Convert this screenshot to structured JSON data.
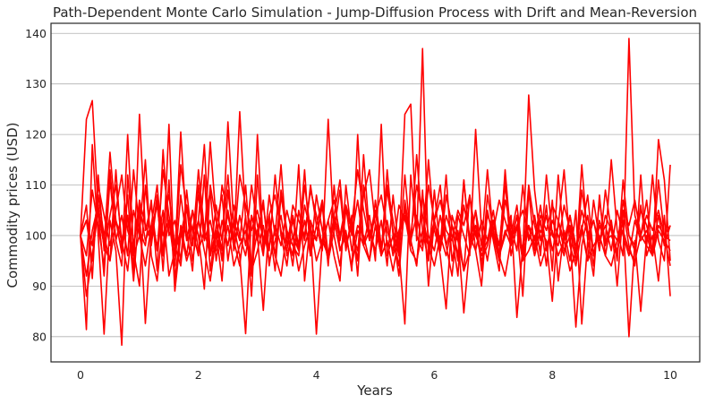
{
  "chart_data": {
    "type": "line",
    "title": "Path-Dependent Monte Carlo Simulation - Jump-Diffusion Process with Drift and Mean-Reversion",
    "xlabel": "Years",
    "ylabel": "Commodity prices (USD)",
    "xlim": [
      -0.5,
      10.5
    ],
    "ylim": [
      75,
      142
    ],
    "xticks": [
      0,
      2,
      4,
      6,
      8,
      10
    ],
    "yticks": [
      80,
      90,
      100,
      110,
      120,
      130,
      140
    ],
    "grid": "y",
    "line_color": "#ff0000",
    "x": [
      0,
      0.1,
      0.2,
      0.3,
      0.4,
      0.5,
      0.6,
      0.7,
      0.8,
      0.9,
      1,
      1.1,
      1.2,
      1.3,
      1.4,
      1.5,
      1.6,
      1.7,
      1.8,
      1.9,
      2,
      2.1,
      2.2,
      2.3,
      2.4,
      2.5,
      2.6,
      2.7,
      2.8,
      2.9,
      3,
      3.1,
      3.2,
      3.3,
      3.4,
      3.5,
      3.6,
      3.7,
      3.8,
      3.9,
      4,
      4.1,
      4.2,
      4.3,
      4.4,
      4.5,
      4.6,
      4.7,
      4.8,
      4.9,
      5,
      5.1,
      5.2,
      5.3,
      5.4,
      5.5,
      5.6,
      5.7,
      5.8,
      5.9,
      6,
      6.1,
      6.2,
      6.3,
      6.4,
      6.5,
      6.6,
      6.7,
      6.8,
      6.9,
      7,
      7.1,
      7.2,
      7.3,
      7.4,
      7.5,
      7.6,
      7.7,
      7.8,
      7.9,
      8,
      8.1,
      8.2,
      8.3,
      8.4,
      8.5,
      8.6,
      8.7,
      8.8,
      8.9,
      9,
      9.1,
      9.2,
      9.3,
      9.4,
      9.5,
      9.6,
      9.7,
      9.8,
      9.9,
      10
    ],
    "series": [
      {
        "values": [
          100,
          123,
          126.7,
          105,
          98,
          116.5,
          103,
          96.5,
          108,
          93,
          124,
          101,
          106,
          97,
          113,
          104,
          96,
          120.5,
          101,
          93,
          110,
          99,
          118.5,
          103,
          95,
          105,
          98,
          124.5,
          103,
          92,
          120,
          98,
          104,
          96,
          109,
          101,
          94,
          105,
          99,
          110,
          102,
          97,
          123,
          100,
          94,
          105,
          101,
          97,
          108,
          113,
          102,
          96,
          110,
          103,
          97,
          124,
          126,
          99,
          137,
          95,
          103,
          110,
          98,
          92,
          104,
          100,
          96,
          121,
          101,
          95,
          103,
          98,
          110,
          100,
          106,
          96,
          127.8,
          109,
          99,
          104,
          97,
          102,
          113,
          98,
          94,
          101,
          108,
          96,
          103,
          99,
          115,
          101,
          96,
          139,
          104,
          100,
          107,
          96,
          119,
          111,
          95
        ]
      },
      {
        "values": [
          100,
          81.4,
          118,
          100,
          80.5,
          103,
          97,
          78.3,
          112,
          98,
          105,
          82.6,
          101,
          106,
          96,
          122,
          91,
          102,
          96,
          105,
          100,
          89.4,
          110,
          103,
          97,
          122.5,
          102,
          96,
          80.6,
          104,
          100,
          85.2,
          103,
          96,
          92,
          101,
          98,
          96,
          106,
          101,
          80.5,
          99,
          103,
          96,
          91,
          110,
          100,
          107,
          98,
          101,
          97,
          103,
          94,
          108,
          97,
          82.5,
          112,
          100,
          97,
          110,
          103,
          96,
          85.5,
          104,
          100,
          84.7,
          98,
          102,
          96,
          99,
          103,
          96,
          100,
          104,
          83.8,
          98,
          102,
          96,
          101,
          99,
          87,
          103,
          97,
          100,
          81.9,
          98,
          104,
          96,
          102,
          99,
          100,
          97,
          103,
          80,
          99,
          85,
          100,
          96,
          102,
          100,
          94
        ]
      },
      {
        "values": [
          100,
          103,
          95,
          110,
          104,
          98,
          105,
          112,
          101,
          97,
          107,
          102,
          99,
          108,
          100,
          103,
          96,
          114,
          105,
          101,
          108,
          99,
          103,
          97,
          110,
          104,
          98,
          112,
          106,
          101,
          105,
          99,
          104,
          108,
          101,
          97,
          106,
          103,
          100,
          109,
          104,
          98,
          103,
          107,
          100,
          106,
          102,
          113,
          105,
          99,
          104,
          108,
          101,
          97,
          106,
          103,
          100,
          110,
          104,
          98,
          103,
          107,
          101,
          99,
          105,
          102,
          108,
          100,
          97,
          104,
          101,
          107,
          103,
          99,
          102,
          105,
          100,
          98,
          104,
          101,
          106,
          103,
          99,
          102,
          97,
          105,
          100,
          103,
          98,
          104,
          101,
          99,
          105,
          102,
          107,
          100,
          104,
          101,
          105,
          100,
          102
        ]
      },
      {
        "values": [
          100,
          92,
          101,
          106,
          98,
          95,
          103,
          99,
          104,
          96,
          100,
          94,
          102,
          98,
          105,
          92,
          97,
          101,
          95,
          99,
          103,
          97,
          91,
          100,
          96,
          102,
          94,
          98,
          101,
          93,
          97,
          102,
          95,
          99,
          104,
          96,
          100,
          93,
          98,
          102,
          95,
          99,
          96,
          103,
          97,
          100,
          94,
          101,
          98,
          95,
          102,
          96,
          99,
          93,
          100,
          104,
          97,
          95,
          101,
          98,
          94,
          100,
          96,
          102,
          99,
          93,
          97,
          101,
          95,
          98,
          103,
          96,
          92,
          99,
          102,
          95,
          97,
          100,
          94,
          98,
          101,
          96,
          99,
          93,
          97,
          102,
          95,
          98,
          100,
          96,
          94,
          99,
          101,
          97,
          95,
          100,
          98,
          96,
          101,
          99,
          97
        ]
      },
      {
        "values": [
          100,
          106,
          91.5,
          112,
          97,
          104,
          110,
          99,
          93,
          105,
          100,
          115,
          96,
          91,
          103,
          108,
          98,
          94,
          106,
          101,
          96,
          112,
          93,
          102,
          108,
          95,
          103,
          99,
          110,
          94,
          101,
          106,
          97,
          112,
          100,
          94,
          104,
          98,
          113,
          96,
          102,
          107,
          95,
          101,
          109,
          97,
          104,
          92,
          110,
          99,
          105,
          96,
          113,
          100,
          94,
          106,
          98,
          116,
          101,
          95,
          109,
          97,
          104,
          100,
          92,
          111,
          98,
          105,
          93,
          108,
          101,
          96,
          113,
          99,
          104,
          95,
          110,
          102,
          97,
          106,
          93,
          112,
          99,
          104,
          96,
          109,
          101,
          94,
          107,
          98,
          103,
          95,
          111,
          100,
          97,
          106,
          98,
          112,
          99,
          95,
          114
        ]
      },
      {
        "values": [
          100,
          88,
          96,
          105,
          92,
          113,
          99,
          94,
          120,
          97,
          90,
          110,
          98,
          107,
          93,
          111,
          89,
          100,
          106,
          95,
          103,
          118,
          96,
          101,
          91,
          109,
          99,
          94,
          104,
          88,
          112,
          97,
          102,
          93,
          108,
          100,
          96,
          114,
          91,
          103,
          99,
          106,
          94,
          110,
          97,
          101,
          93,
          120,
          98,
          104,
          95,
          122,
          96,
          100,
          92,
          107,
          99,
          94,
          109,
          90,
          103,
          98,
          112,
          95,
          101,
          93,
          108,
          97,
          90,
          105,
          99,
          93,
          111,
          96,
          102,
          88,
          109,
          97,
          103,
          94,
          107,
          91,
          101,
          95,
          105,
          82.5,
          99,
          92,
          108,
          96,
          103,
          90,
          105,
          98,
          94,
          112,
          96,
          100,
          91,
          104,
          88
        ]
      },
      {
        "values": [
          100,
          96,
          109,
          102,
          94,
          111,
          99,
          104,
          96,
          113,
          101,
          98,
          107,
          93,
          117,
          100,
          103,
          95,
          109,
          98,
          113,
          101,
          96,
          106,
          99,
          112,
          97,
          104,
          98,
          110,
          102,
          96,
          108,
          100,
          114,
          98,
          103,
          97,
          110,
          101,
          99,
          107,
          96,
          104,
          111,
          98,
          102,
          95,
          116,
          100,
          105,
          97,
          109,
          101,
          96,
          112,
          99,
          104,
          98,
          115,
          101,
          97,
          108,
          102,
          96,
          111,
          99,
          105,
          98,
          113,
          100,
          95,
          107,
          102,
          97,
          110,
          99,
          104,
          96,
          112,
          100,
          98,
          106,
          101,
          95,
          114,
          99,
          103,
          97,
          109,
          101,
          96,
          107,
          100,
          98,
          105,
          102,
          97,
          111,
          100,
          99
        ]
      },
      {
        "values": [
          100,
          103,
          98,
          108,
          100,
          95,
          113,
          97,
          104,
          91,
          106,
          99,
          102,
          110,
          96,
          103,
          94,
          108,
          99,
          105,
          97,
          101,
          109,
          95,
          103,
          98,
          106,
          100,
          96,
          104,
          99,
          107,
          94,
          102,
          98,
          105,
          100,
          97,
          103,
          96,
          108,
          101,
          95,
          104,
          99,
          106,
          97,
          102,
          100,
          95,
          107,
          98,
          103,
          96,
          101,
          105,
          99,
          94,
          108,
          100,
          97,
          104,
          98,
          102,
          95,
          106,
          100,
          97,
          103,
          99,
          105,
          96,
          101,
          98,
          104,
          95,
          102,
          99,
          106,
          97,
          103,
          100,
          96,
          104,
          98,
          101,
          95,
          107,
          99,
          102,
          97,
          105,
          100,
          96,
          103,
          99,
          101,
          97,
          104,
          98,
          102
        ]
      }
    ]
  }
}
